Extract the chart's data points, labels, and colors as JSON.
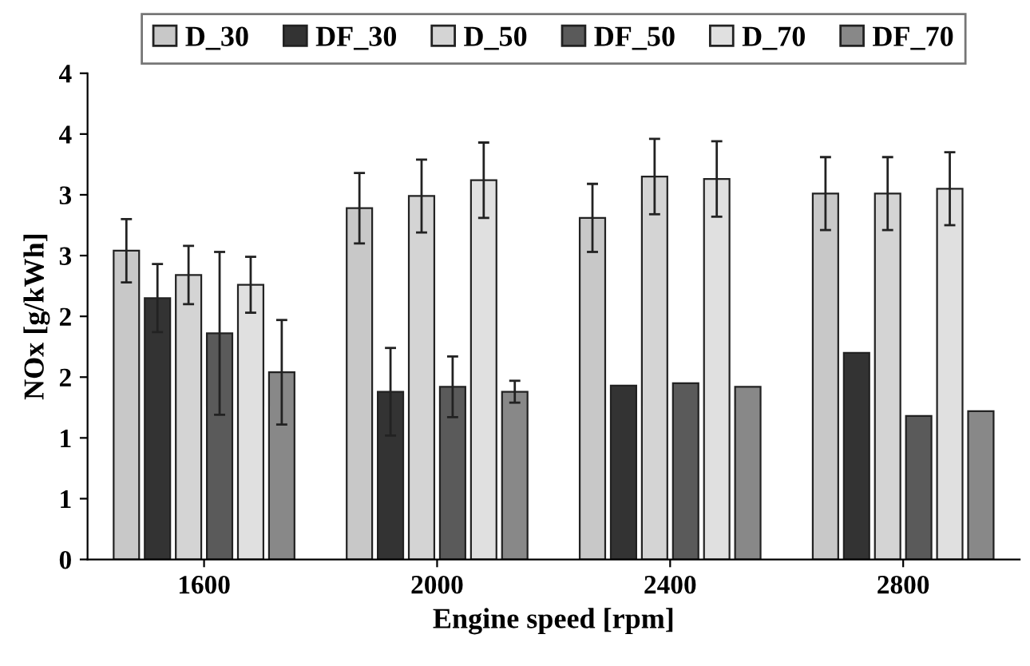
{
  "chart_data": {
    "type": "bar",
    "xlabel": "Engine speed [rpm]",
    "ylabel": "NOx [g/kWh]",
    "categories": [
      "1600",
      "2000",
      "2400",
      "2800"
    ],
    "series": [
      {
        "name": "D_30",
        "color": "#c8c8c8",
        "values": [
          2.54,
          2.89,
          2.81,
          3.01
        ],
        "errors": [
          0.26,
          0.29,
          0.28,
          0.3
        ]
      },
      {
        "name": "DF_30",
        "color": "#333333",
        "values": [
          2.15,
          1.38,
          1.43,
          1.7
        ],
        "errors": [
          0.28,
          0.36,
          null,
          null
        ]
      },
      {
        "name": "D_50",
        "color": "#d4d4d4",
        "values": [
          2.34,
          2.99,
          3.15,
          3.01
        ],
        "errors": [
          0.24,
          0.3,
          0.31,
          0.3
        ]
      },
      {
        "name": "DF_50",
        "color": "#5a5a5a",
        "values": [
          1.86,
          1.42,
          1.45,
          1.18
        ],
        "errors": [
          0.67,
          0.25,
          null,
          null
        ]
      },
      {
        "name": "D_70",
        "color": "#e0e0e0",
        "values": [
          2.26,
          3.12,
          3.13,
          3.05
        ],
        "errors": [
          0.23,
          0.31,
          0.31,
          0.3
        ]
      },
      {
        "name": "DF_70",
        "color": "#888888",
        "values": [
          1.54,
          1.38,
          1.42,
          1.22
        ],
        "errors": [
          0.43,
          0.09,
          null,
          null
        ]
      }
    ],
    "ylim": [
      0,
      4
    ],
    "yticks": [
      0,
      {
        "value": 0.5,
        "label": "1"
      },
      1,
      {
        "value": 1.5,
        "label": "2"
      },
      2,
      {
        "value": 2.5,
        "label": "3"
      },
      3,
      {
        "value": 3.5,
        "label": "4"
      },
      4
    ],
    "grid": false,
    "legend": "top"
  }
}
